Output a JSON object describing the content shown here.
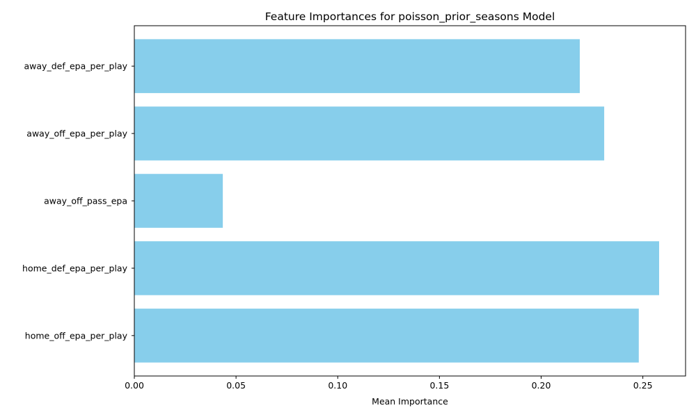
{
  "chart_data": {
    "type": "bar",
    "orientation": "horizontal",
    "title": "Feature Importances for poisson_prior_seasons Model",
    "xlabel": "Mean Importance",
    "ylabel": "",
    "categories": [
      "away_def_epa_per_play",
      "away_off_epa_per_play",
      "away_off_pass_epa",
      "home_def_epa_per_play",
      "home_off_epa_per_play"
    ],
    "values": [
      0.219,
      0.231,
      0.0435,
      0.258,
      0.248
    ],
    "xlim": [
      0,
      0.271
    ],
    "xticks": [
      0.0,
      0.05,
      0.1,
      0.15,
      0.2,
      0.25
    ],
    "xtick_labels": [
      "0.00",
      "0.05",
      "0.10",
      "0.15",
      "0.20",
      "0.25"
    ],
    "bar_color": "#87CEEB",
    "grid": false,
    "legend": "none"
  }
}
